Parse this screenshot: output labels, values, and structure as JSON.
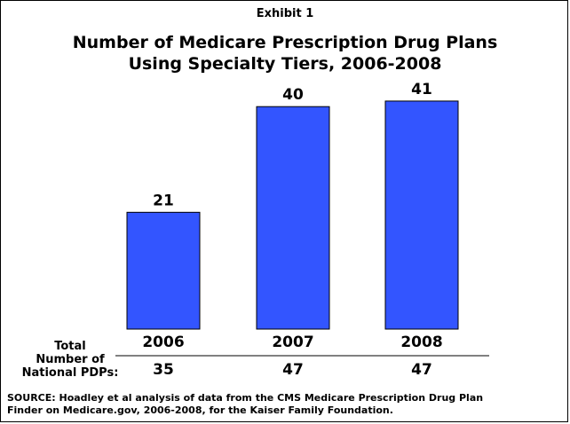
{
  "exhibit_label": "Exhibit 1",
  "title_line1": "Number of Medicare Prescription Drug Plans",
  "title_line2": "Using Specialty Tiers, 2006-2008",
  "table": {
    "row_label_1": "Total",
    "row_label_2": "Number of",
    "row_label_3": "National PDPs:",
    "totals": [
      "35",
      "47",
      "47"
    ]
  },
  "source_line1": "SOURCE:  Hoadley et al analysis of data from the CMS Medicare Prescription Drug Plan",
  "source_line2": "Finder on Medicare.gov, 2006-2008, for the Kaiser Family Foundation.",
  "chart_data": {
    "type": "bar",
    "categories": [
      "2006",
      "2007",
      "2008"
    ],
    "values": [
      21,
      40,
      41
    ],
    "title": "Number of Medicare Prescription Drug Plans Using Specialty Tiers, 2006-2008",
    "bar_color": "#3355FF",
    "bar_edge_color": "#000000",
    "grid": false
  }
}
